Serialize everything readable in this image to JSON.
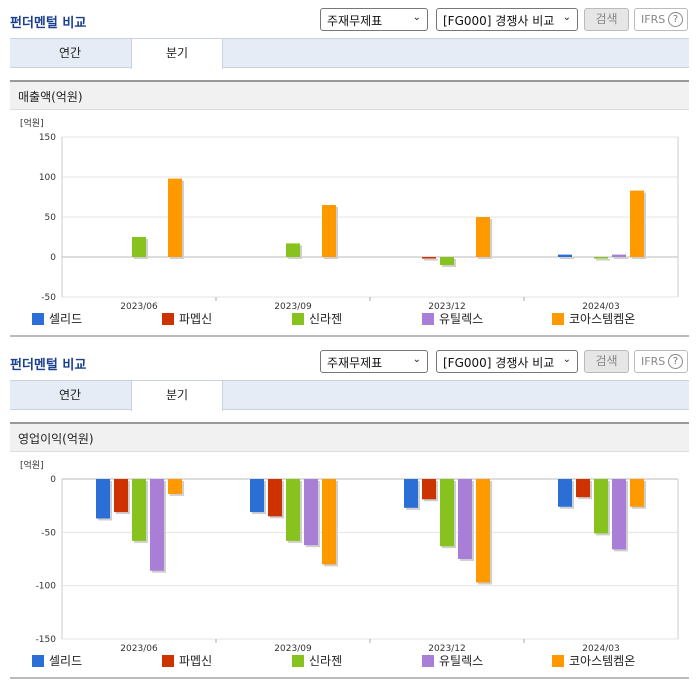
{
  "panels": [
    {
      "title": "펀더멘털 비교",
      "select1": "주재무제표",
      "select2": "[FG000] 경쟁사 비교",
      "search_label": "검색",
      "ifrs_label": "IFRS",
      "ifrs_help": "?",
      "tabs": [
        "연간",
        "분기"
      ],
      "active_tab": "분기",
      "chart_title": "매출액(억원)"
    },
    {
      "title": "펀더멘털 비교",
      "select1": "주재무제표",
      "select2": "[FG000] 경쟁사 비교",
      "search_label": "검색",
      "ifrs_label": "IFRS",
      "ifrs_help": "?",
      "tabs": [
        "연간",
        "분기"
      ],
      "active_tab": "분기",
      "chart_title": "영업이익(억원)"
    }
  ],
  "chart_data": [
    {
      "type": "bar",
      "unit_label": "[억원]",
      "categories": [
        "2023/06",
        "2023/09",
        "2023/12",
        "2024/03"
      ],
      "ylim": [
        -50,
        150
      ],
      "yticks": [
        -50,
        0,
        50,
        100,
        150
      ],
      "grid": true,
      "legend": "bottom",
      "series": [
        {
          "name": "셀리드",
          "color": "#2b6fd6",
          "values": [
            null,
            null,
            null,
            3
          ]
        },
        {
          "name": "파멥신",
          "color": "#cc3300",
          "values": [
            null,
            null,
            -2,
            null
          ]
        },
        {
          "name": "신라젠",
          "color": "#88c21e",
          "values": [
            25,
            17,
            -10,
            -2
          ]
        },
        {
          "name": "유틸렉스",
          "color": "#a97ed6",
          "values": [
            null,
            null,
            null,
            3
          ]
        },
        {
          "name": "코아스템켐온",
          "color": "#ff9900",
          "values": [
            98,
            65,
            50,
            83
          ]
        }
      ]
    },
    {
      "type": "bar",
      "unit_label": "[억원]",
      "categories": [
        "2023/06",
        "2023/09",
        "2023/12",
        "2024/03"
      ],
      "ylim": [
        -150,
        0
      ],
      "yticks": [
        -150,
        -100,
        -50,
        0
      ],
      "grid": true,
      "legend": "bottom",
      "series": [
        {
          "name": "셀리드",
          "color": "#2b6fd6",
          "values": [
            -37,
            -31,
            -27,
            -26
          ]
        },
        {
          "name": "파멥신",
          "color": "#cc3300",
          "values": [
            -31,
            -35,
            -19,
            -17
          ]
        },
        {
          "name": "신라젠",
          "color": "#88c21e",
          "values": [
            -58,
            -58,
            -63,
            -51
          ]
        },
        {
          "name": "유틸렉스",
          "color": "#a97ed6",
          "values": [
            -86,
            -62,
            -75,
            -66
          ]
        },
        {
          "name": "코아스템켐온",
          "color": "#ff9900",
          "values": [
            -14,
            -80,
            -97,
            -26
          ]
        }
      ]
    }
  ]
}
